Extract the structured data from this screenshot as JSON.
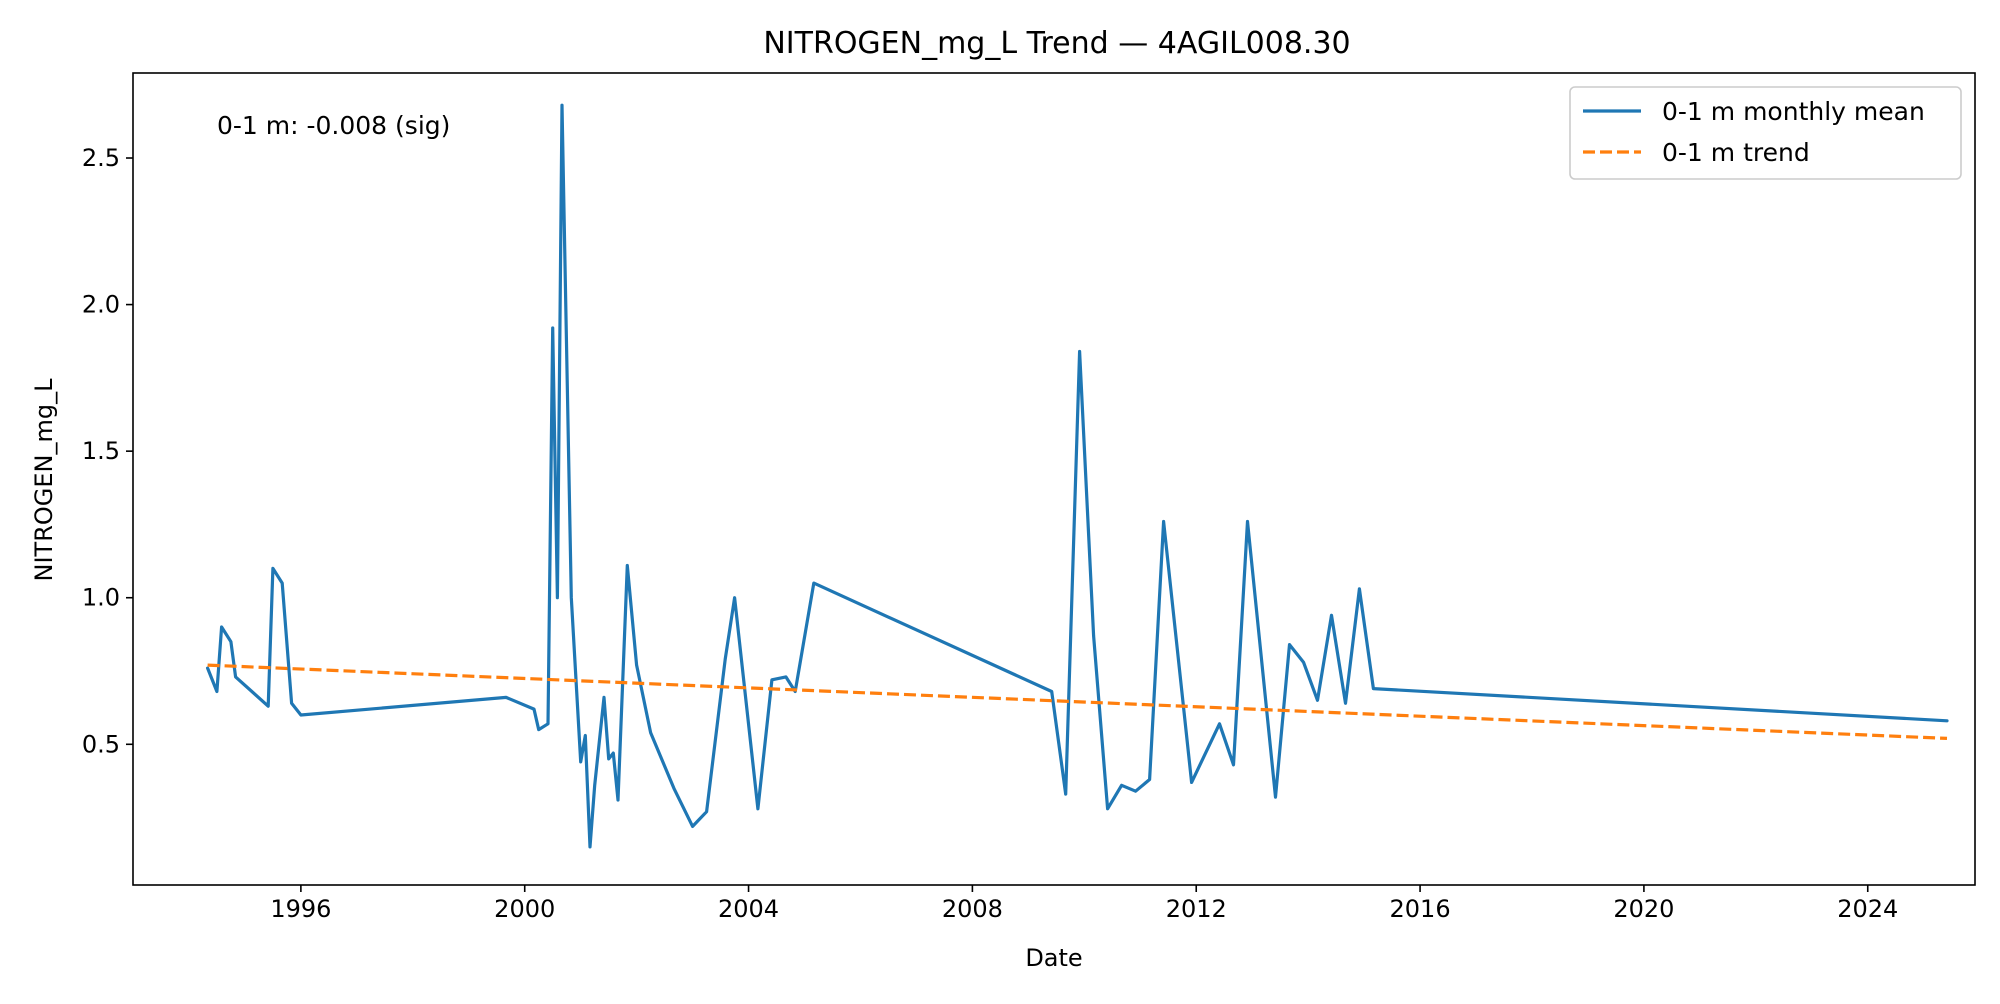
{
  "chart_data": {
    "type": "line",
    "title": "NITROGEN_mg_L Trend — 4AGIL008.30",
    "xlabel": "Date",
    "ylabel": "NITROGEN_mg_L",
    "xlim": [
      "1993-01-01",
      "2025-12-01"
    ],
    "ylim": [
      0.02,
      2.79
    ],
    "x_ticks": [
      "1996",
      "2000",
      "2004",
      "2008",
      "2012",
      "2016",
      "2020",
      "2024"
    ],
    "y_ticks": [
      "0.5",
      "1.0",
      "1.5",
      "2.0",
      "2.5"
    ],
    "grid": false,
    "legend_position": "upper right",
    "annotation": "0-1 m: -0.008 (sig)",
    "series": [
      {
        "name": "0-1 m monthly mean",
        "style": "solid",
        "color": "#1f77b4",
        "points": [
          [
            "1994-05",
            0.76
          ],
          [
            "1994-07",
            0.68
          ],
          [
            "1994-08",
            0.9
          ],
          [
            "1994-10",
            0.85
          ],
          [
            "1994-11",
            0.73
          ],
          [
            "1995-06",
            0.63
          ],
          [
            "1995-07",
            1.1
          ],
          [
            "1995-09",
            1.05
          ],
          [
            "1995-11",
            0.64
          ],
          [
            "1996-01",
            0.6
          ],
          [
            "1999-09",
            0.66
          ],
          [
            "2000-03",
            0.62
          ],
          [
            "2000-04",
            0.55
          ],
          [
            "2000-06",
            0.57
          ],
          [
            "2000-07",
            1.92
          ],
          [
            "2000-08",
            1.0
          ],
          [
            "2000-09",
            2.68
          ],
          [
            "2000-11",
            1.0
          ],
          [
            "2001-01",
            0.44
          ],
          [
            "2001-02",
            0.53
          ],
          [
            "2001-03",
            0.15
          ],
          [
            "2001-04",
            0.36
          ],
          [
            "2001-06",
            0.66
          ],
          [
            "2001-07",
            0.45
          ],
          [
            "2001-08",
            0.47
          ],
          [
            "2001-09",
            0.31
          ],
          [
            "2001-11",
            1.11
          ],
          [
            "2002-01",
            0.77
          ],
          [
            "2002-04",
            0.54
          ],
          [
            "2002-09",
            0.35
          ],
          [
            "2003-01",
            0.22
          ],
          [
            "2003-04",
            0.27
          ],
          [
            "2003-08",
            0.79
          ],
          [
            "2003-10",
            1.0
          ],
          [
            "2004-03",
            0.28
          ],
          [
            "2004-06",
            0.72
          ],
          [
            "2004-09",
            0.73
          ],
          [
            "2004-11",
            0.68
          ],
          [
            "2005-03",
            1.05
          ],
          [
            "2009-06",
            0.68
          ],
          [
            "2009-09",
            0.33
          ],
          [
            "2009-12",
            1.84
          ],
          [
            "2010-03",
            0.87
          ],
          [
            "2010-06",
            0.28
          ],
          [
            "2010-09",
            0.36
          ],
          [
            "2010-12",
            0.34
          ],
          [
            "2011-03",
            0.38
          ],
          [
            "2011-06",
            1.26
          ],
          [
            "2011-12",
            0.37
          ],
          [
            "2012-06",
            0.57
          ],
          [
            "2012-09",
            0.43
          ],
          [
            "2012-12",
            1.26
          ],
          [
            "2013-06",
            0.32
          ],
          [
            "2013-09",
            0.84
          ],
          [
            "2013-12",
            0.78
          ],
          [
            "2014-03",
            0.65
          ],
          [
            "2014-06",
            0.94
          ],
          [
            "2014-09",
            0.64
          ],
          [
            "2014-12",
            1.03
          ],
          [
            "2015-03",
            0.69
          ],
          [
            "2025-06",
            0.58
          ]
        ]
      },
      {
        "name": "0-1 m trend",
        "style": "dashed",
        "color": "#ff7f0e",
        "points": [
          [
            "1994-05",
            0.77
          ],
          [
            "2025-06",
            0.52
          ]
        ]
      }
    ]
  }
}
